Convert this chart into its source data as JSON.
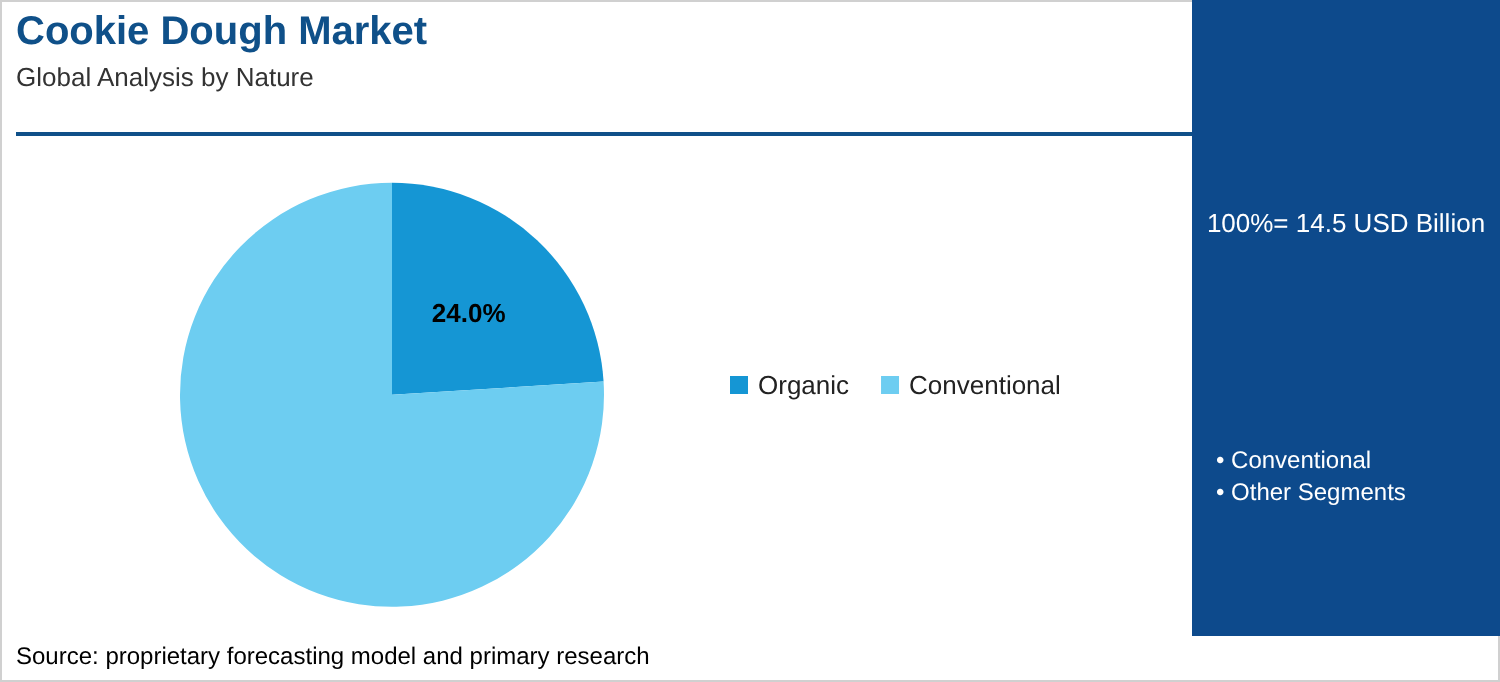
{
  "chart_data": {
    "type": "pie",
    "title": "Cookie Dough Market",
    "subtitle": "Global Analysis by Nature",
    "categories": [
      "Organic",
      "Conventional"
    ],
    "values": [
      24,
      76
    ],
    "colors": [
      "#1596d4",
      "#6dcdf1"
    ],
    "value_labels": [
      "24.0%",
      null
    ],
    "legend": "right",
    "annotations": [
      "Source: proprietary forecasting model and primary research",
      "100%= 14.5 USD Billion",
      "• Conventional",
      "• Other Segments"
    ]
  }
}
